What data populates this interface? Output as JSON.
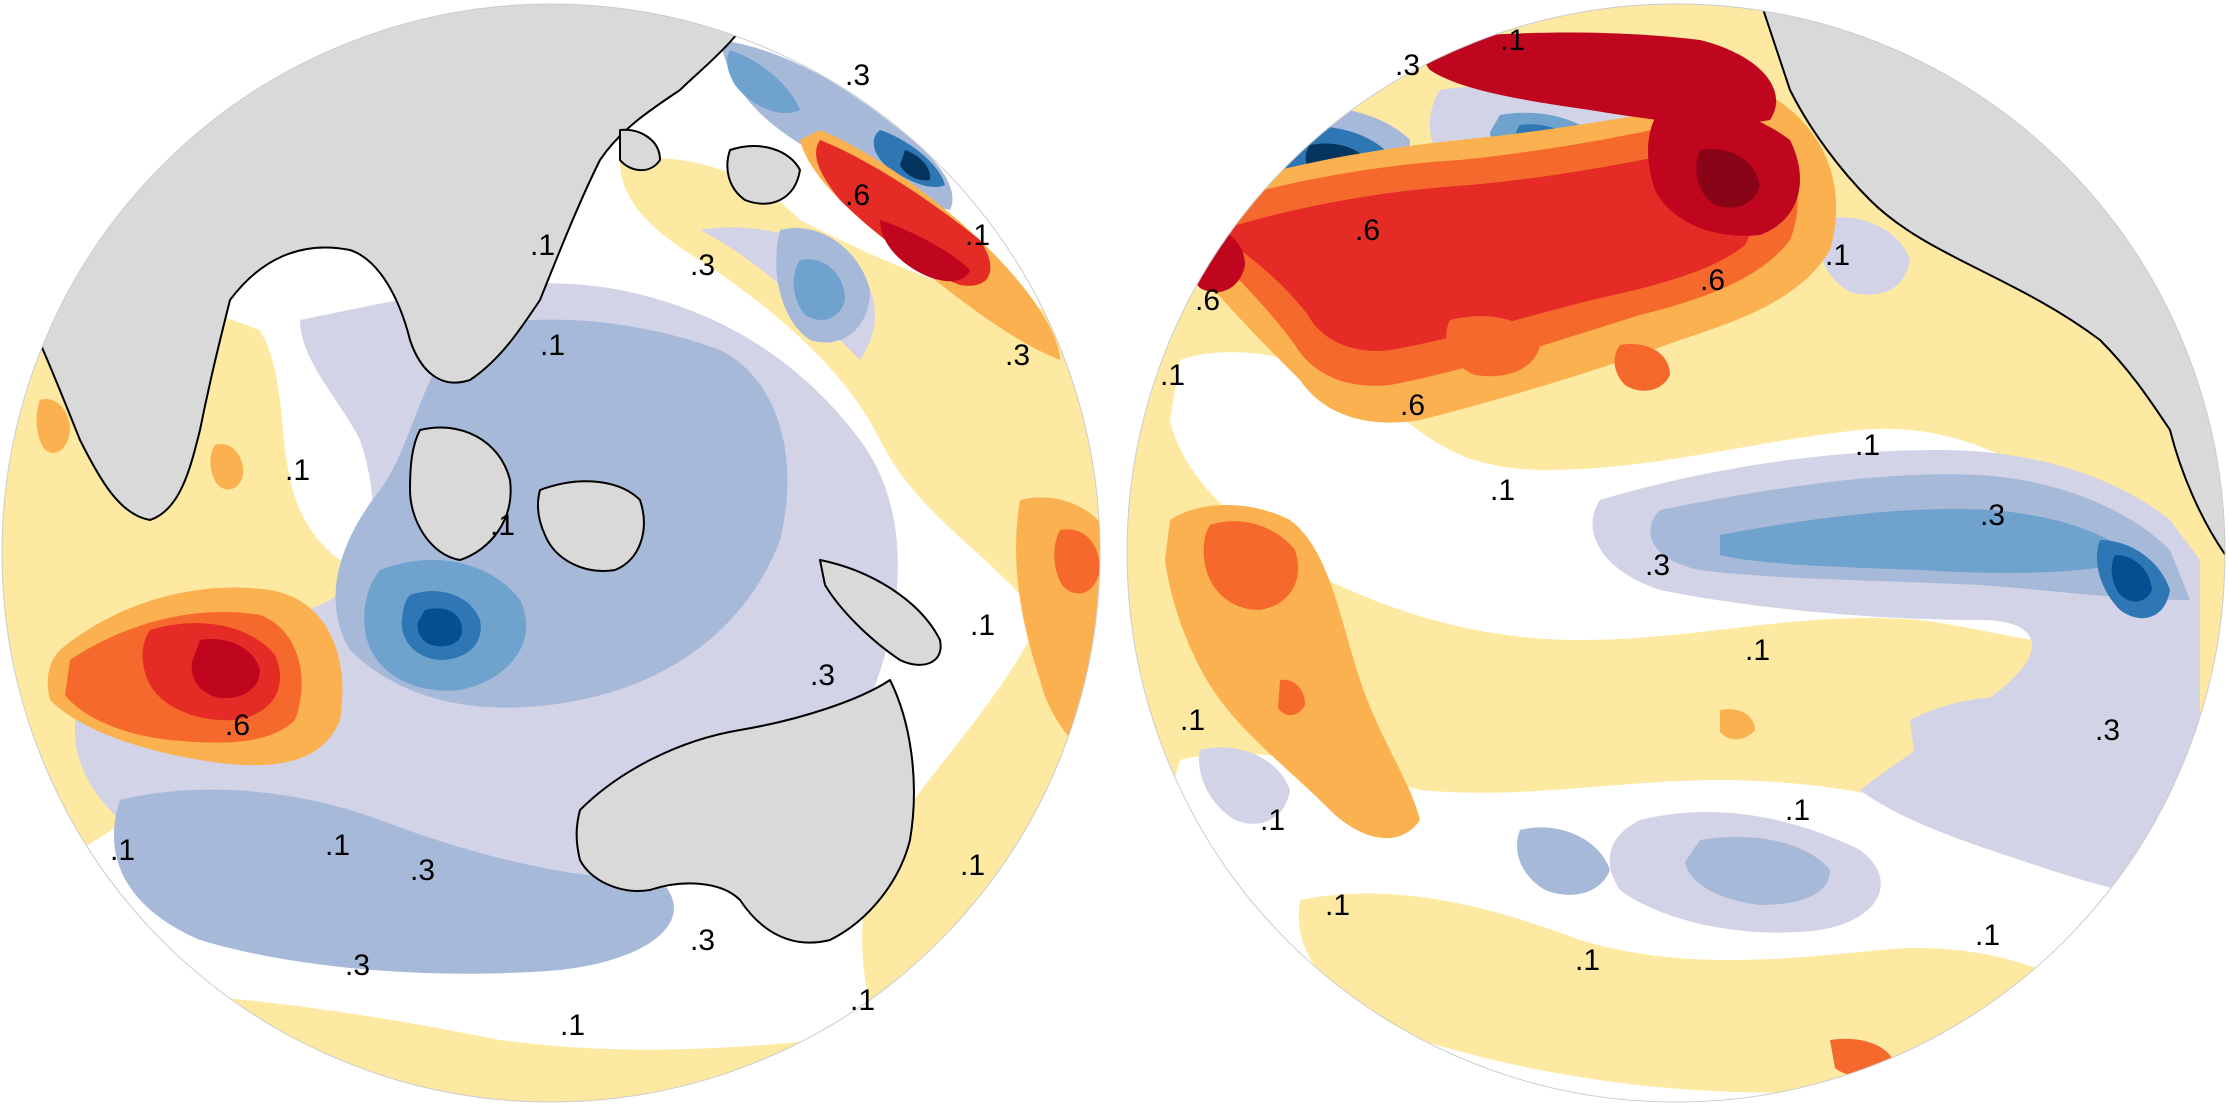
{
  "colors": {
    "land": "#d9d9d9",
    "coast": "#000000",
    "neutral": "#ffffff",
    "pos1": "#fde9a2",
    "pos2": "#fbb14f",
    "pos3": "#f56a2c",
    "pos4": "#e42b25",
    "pos5": "#c0061e",
    "pos6": "#8a0418",
    "neg1": "#d2d3e6",
    "neg2": "#a7b9d9",
    "neg3": "#6fa3cd",
    "neg4": "#2e76b4",
    "neg5": "#054e92",
    "neg6": "#03355f"
  },
  "contour_labels": {
    "left": [
      ".6",
      ".1",
      ".3",
      ".1",
      ".3",
      ".1",
      ".1",
      ".3",
      ".6",
      ".1",
      ".1",
      ".3",
      ".1",
      ".3",
      ".1",
      ".3",
      ".1",
      ".1",
      ".1",
      ".3"
    ],
    "right": [
      ".3",
      ".1",
      ".6",
      ".6",
      ".6",
      ".1",
      ".6",
      ".1",
      ".1",
      ".1",
      ".3",
      ".3",
      ".1",
      ".1",
      ".3",
      ".1",
      ".1",
      ".1",
      ".1",
      ".1"
    ]
  }
}
